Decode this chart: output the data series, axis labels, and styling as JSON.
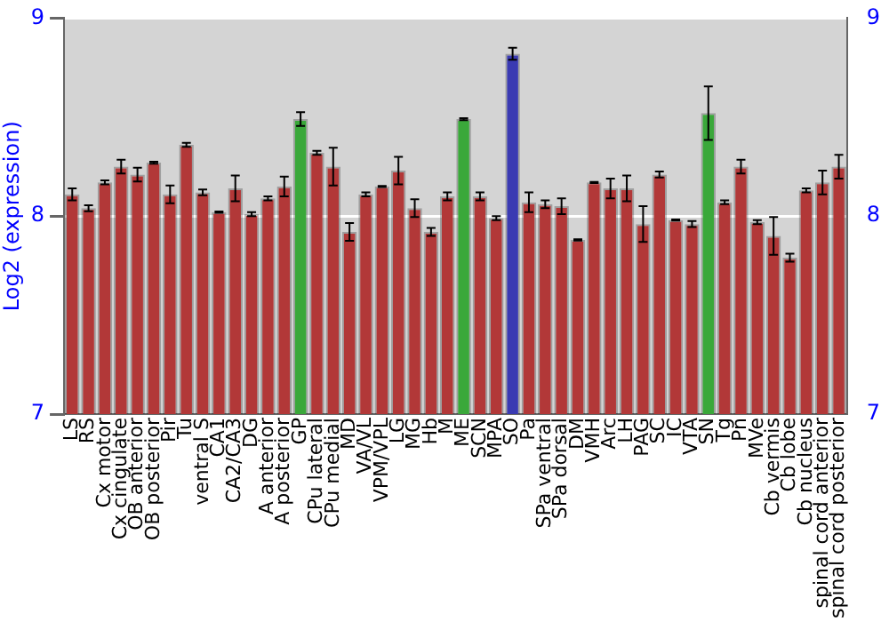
{
  "chart_data": {
    "type": "bar",
    "ylabel": "Log2 (expression)",
    "categories": [
      "LS",
      "RS",
      "Cx motor",
      "Cx cingulate",
      "OB anterior",
      "OB posterior",
      "Pir",
      "Tu",
      "ventral S",
      "CA1",
      "CA2/CA3",
      "DG",
      "A anterior",
      "A posterior",
      "GP",
      "CPu lateral",
      "CPu medial",
      "MD",
      "VA/VL",
      "VPM/VPL",
      "LG",
      "MG",
      "Hb",
      "M",
      "ME",
      "SCN",
      "MPA",
      "SO",
      "Pa",
      "SPa ventral",
      "SPa dorsal",
      "DM",
      "VMH",
      "Arc",
      "LH",
      "PAG",
      "SC",
      "IC",
      "VTA",
      "SN",
      "Tg",
      "Pn",
      "MVe",
      "Cb vermis",
      "Cb lobe",
      "Cb nucleus",
      "spinal cord anterior",
      "spinal cord posterior"
    ],
    "values": [
      8.11,
      8.04,
      8.17,
      8.25,
      8.21,
      8.27,
      8.11,
      8.36,
      8.12,
      8.02,
      8.14,
      8.01,
      8.09,
      8.15,
      8.49,
      8.32,
      8.25,
      7.92,
      8.11,
      8.15,
      8.23,
      8.04,
      7.92,
      8.1,
      8.49,
      8.1,
      7.99,
      8.82,
      8.07,
      8.06,
      8.05,
      7.88,
      8.17,
      8.14,
      8.14,
      7.96,
      8.21,
      7.98,
      7.96,
      8.52,
      8.07,
      8.25,
      7.97,
      7.9,
      7.79,
      8.13,
      8.17,
      8.25
    ],
    "errors": [
      0.03,
      0.015,
      0.01,
      0.035,
      0.035,
      0.005,
      0.045,
      0.01,
      0.015,
      0.003,
      0.065,
      0.01,
      0.01,
      0.05,
      0.035,
      0.01,
      0.095,
      0.045,
      0.01,
      0.003,
      0.07,
      0.045,
      0.02,
      0.02,
      0.005,
      0.02,
      0.01,
      0.03,
      0.05,
      0.02,
      0.04,
      0.003,
      0.003,
      0.05,
      0.065,
      0.09,
      0.015,
      0.003,
      0.015,
      0.135,
      0.01,
      0.035,
      0.01,
      0.095,
      0.02,
      0.01,
      0.06,
      0.06
    ],
    "colors": [
      "#b23838",
      "#b23838",
      "#b23838",
      "#b23838",
      "#b23838",
      "#b23838",
      "#b23838",
      "#b23838",
      "#b23838",
      "#b23838",
      "#b23838",
      "#b23838",
      "#b23838",
      "#b23838",
      "#3aa83a",
      "#b23838",
      "#b23838",
      "#b23838",
      "#b23838",
      "#b23838",
      "#b23838",
      "#b23838",
      "#b23838",
      "#b23838",
      "#3aa83a",
      "#b23838",
      "#b23838",
      "#3a3ab2",
      "#b23838",
      "#b23838",
      "#b23838",
      "#b23838",
      "#b23838",
      "#b23838",
      "#b23838",
      "#b23838",
      "#b23838",
      "#b23838",
      "#b23838",
      "#3aa83a",
      "#b23838",
      "#b23838",
      "#b23838",
      "#b23838",
      "#b23838",
      "#b23838",
      "#b23838",
      "#b23838"
    ],
    "ylim": [
      7,
      9
    ],
    "yticks": [
      7,
      8,
      9
    ],
    "y2lim": [
      7,
      9
    ],
    "y2ticks": [
      7,
      8,
      9
    ],
    "grid": "y",
    "legend": false
  }
}
